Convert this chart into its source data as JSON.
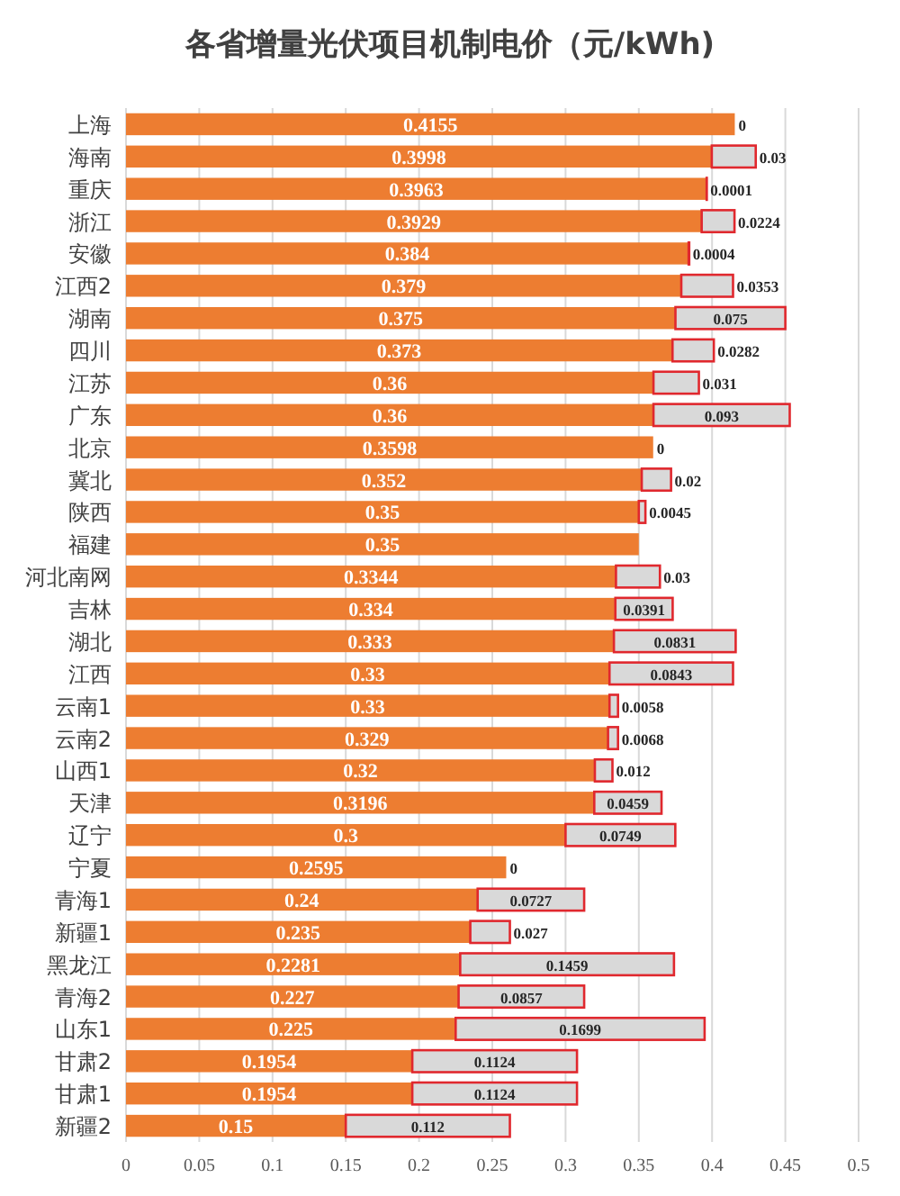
{
  "chart_data": {
    "type": "bar",
    "orientation": "horizontal",
    "stacked": true,
    "title": "各省增量光伏项目机制电价（元/kWh)",
    "categories": [
      "上海",
      "海南",
      "重庆",
      "浙江",
      "安徽",
      "江西2",
      "湖南",
      "四川",
      "江苏",
      "广东",
      "北京",
      "冀北",
      "陕西",
      "福建",
      "河北南网",
      "吉林",
      "湖北",
      "江西",
      "云南1",
      "云南2",
      "山西1",
      "天津",
      "辽宁",
      "宁夏",
      "青海1",
      "新疆1",
      "黑龙江",
      "青海2",
      "山东1",
      "甘肃2",
      "甘肃1",
      "新疆2"
    ],
    "series": [
      {
        "color": "#ed7d31",
        "values": [
          0.4155,
          0.3998,
          0.3963,
          0.3929,
          0.384,
          0.379,
          0.375,
          0.373,
          0.36,
          0.36,
          0.3598,
          0.352,
          0.35,
          0.35,
          0.3344,
          0.334,
          0.333,
          0.33,
          0.33,
          0.329,
          0.32,
          0.3196,
          0.3,
          0.2595,
          0.24,
          0.235,
          0.2281,
          0.227,
          0.225,
          0.1954,
          0.1954,
          0.15
        ]
      },
      {
        "color": "#d9d9d9",
        "values": [
          0,
          0.03,
          0.0001,
          0.0224,
          0.0004,
          0.0353,
          0.075,
          0.0282,
          0.031,
          0.093,
          0,
          0.02,
          0.0045,
          null,
          0.03,
          0.0391,
          0.0831,
          0.0843,
          0.0058,
          0.0068,
          0.012,
          0.0459,
          0.0749,
          0,
          0.0727,
          0.027,
          0.1459,
          0.0857,
          0.1699,
          0.1124,
          0.1124,
          0.112
        ]
      }
    ],
    "xlim": [
      0,
      0.5
    ],
    "xticks": [
      0,
      0.05,
      0.1,
      0.15,
      0.2,
      0.25,
      0.3,
      0.35,
      0.4,
      0.45,
      0.5
    ],
    "grid": "x",
    "data_labels": true
  }
}
